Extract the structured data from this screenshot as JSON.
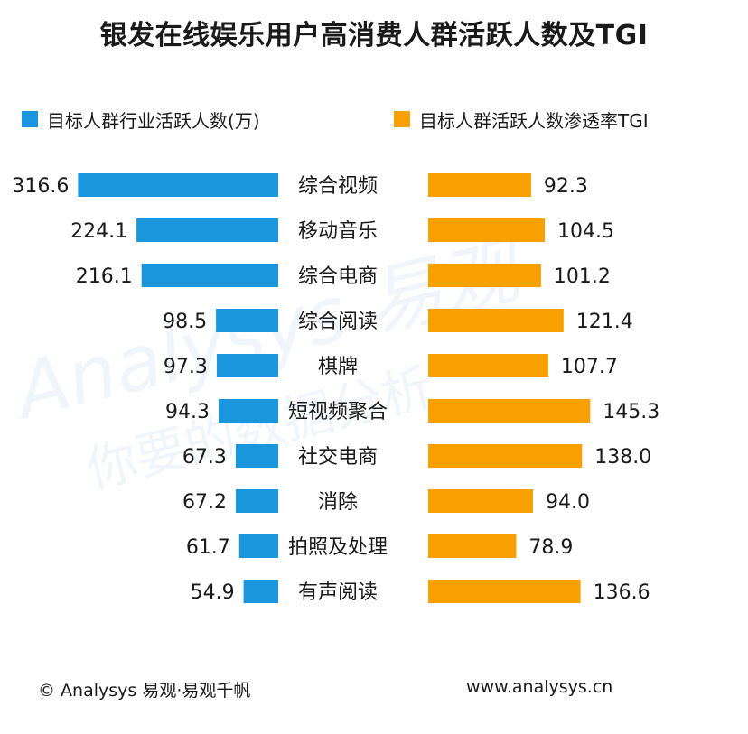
{
  "title": "银发在线娱乐用户高消费人群活跃人数及TGI",
  "legend": {
    "left_label": "目标人群行业活跃人数(万)",
    "right_label": "目标人群活跃人数渗透率TGI"
  },
  "colors": {
    "blue": "#1a96dc",
    "orange": "#f7a000"
  },
  "footer": {
    "left": "© Analysys 易观·易观千帆",
    "right": "www.analysys.cn"
  },
  "watermark": {
    "brand": "Analysys 易观",
    "slogan": "你要的数据分析"
  },
  "chart_data": {
    "type": "bar",
    "orientation": "horizontal-butterfly",
    "categories": [
      "综合视频",
      "移动音乐",
      "综合电商",
      "综合阅读",
      "棋牌",
      "短视频聚合",
      "社交电商",
      "消除",
      "拍照及处理",
      "有声阅读"
    ],
    "series": [
      {
        "name": "目标人群行业活跃人数(万)",
        "values": [
          316.6,
          224.1,
          216.1,
          98.5,
          97.3,
          94.3,
          67.3,
          67.2,
          61.7,
          54.9
        ],
        "labels": [
          "316.6",
          "224.1",
          "216.1",
          "98.5",
          "97.3",
          "94.3",
          "67.3",
          "67.2",
          "61.7",
          "54.9"
        ],
        "color": "#1a96dc",
        "direction": "left"
      },
      {
        "name": "目标人群活跃人数渗透率TGI",
        "values": [
          92.3,
          104.5,
          101.2,
          121.4,
          107.7,
          145.3,
          138.0,
          94.0,
          78.9,
          136.6
        ],
        "labels": [
          "92.3",
          "104.5",
          "101.2",
          "121.4",
          "107.7",
          "145.3",
          "138.0",
          "94.0",
          "78.9",
          "136.6"
        ],
        "color": "#f7a000",
        "direction": "right"
      }
    ],
    "legend": "top",
    "grid": false
  }
}
